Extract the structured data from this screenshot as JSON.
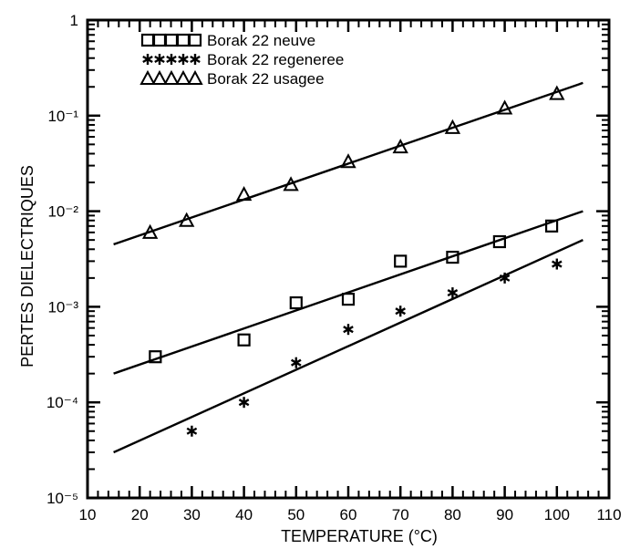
{
  "chart_data": {
    "type": "scatter",
    "title": "",
    "xlabel": "TEMPERATURE (°C)",
    "ylabel": "PERTES DIELECTRIQUES",
    "xlim": [
      10,
      110
    ],
    "ylim": [
      1e-05,
      1
    ],
    "x_scale": "linear",
    "y_scale": "log",
    "grid": false,
    "legend_position": "top-left",
    "x_ticks": [
      10,
      20,
      30,
      40,
      50,
      60,
      70,
      80,
      90,
      100,
      110
    ],
    "x_tick_labels": [
      "10",
      "20",
      "30",
      "40",
      "50",
      "60",
      "70",
      "80",
      "90",
      "100",
      "110"
    ],
    "y_ticks": [
      1e-05,
      0.0001,
      0.001,
      0.01,
      0.1,
      1
    ],
    "y_tick_labels": [
      "10⁻⁵",
      "10⁻⁴",
      "10⁻³",
      "10⁻²",
      "10⁻¹",
      "1"
    ],
    "series": [
      {
        "name": "Borak 22 neuve",
        "legend_symbol": "□□□□□",
        "marker": "square",
        "x": [
          23,
          40,
          50,
          60,
          70,
          80,
          89,
          99
        ],
        "y": [
          0.0003,
          0.00045,
          0.0011,
          0.0012,
          0.003,
          0.0033,
          0.0048,
          0.007
        ],
        "fit_x": [
          15,
          105
        ],
        "fit_y": [
          0.0002,
          0.01
        ]
      },
      {
        "name": "Borak 22 regeneree",
        "legend_symbol": "*****",
        "marker": "star",
        "x": [
          30,
          40,
          50,
          60,
          70,
          80,
          90,
          100
        ],
        "y": [
          5e-05,
          0.0001,
          0.00026,
          0.00058,
          0.0009,
          0.0014,
          0.002,
          0.0028
        ],
        "fit_x": [
          15,
          105
        ],
        "fit_y": [
          3e-05,
          0.005
        ]
      },
      {
        "name": "Borak 22 usagee",
        "legend_symbol": "△△△△△",
        "marker": "triangle",
        "x": [
          22,
          29,
          40,
          49,
          60,
          70,
          80,
          90,
          100
        ],
        "y": [
          0.006,
          0.008,
          0.015,
          0.019,
          0.033,
          0.047,
          0.075,
          0.12,
          0.17
        ],
        "fit_x": [
          15,
          105
        ],
        "fit_y": [
          0.0045,
          0.22
        ]
      }
    ]
  }
}
